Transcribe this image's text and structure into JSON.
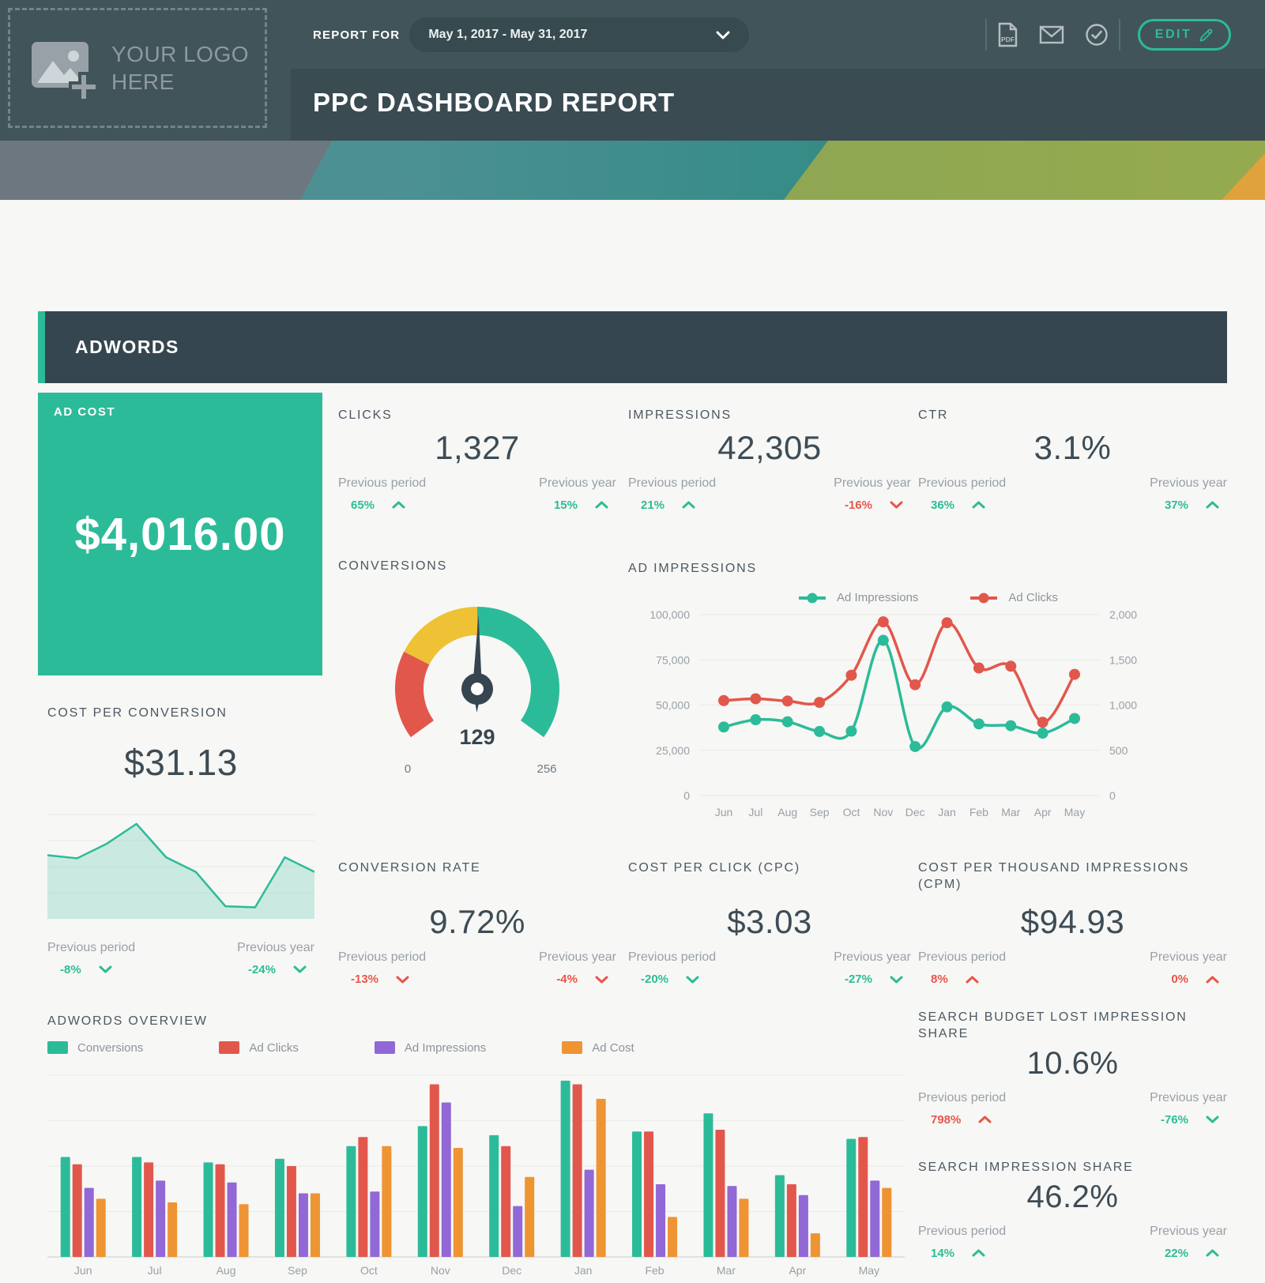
{
  "header": {
    "logo_line1": "YOUR LOGO",
    "logo_line2": "HERE",
    "report_for_label": "REPORT FOR",
    "date_range": "May 1, 2017 - May 31, 2017",
    "icons": [
      "pdf-icon",
      "mail-icon",
      "check-circle-icon"
    ],
    "edit_label": "EDIT",
    "title": "PPC DASHBOARD REPORT"
  },
  "section_title": "ADWORDS",
  "compare_labels": {
    "period": "Previous period",
    "year": "Previous year"
  },
  "colors": {
    "accent_teal": "#2cbb99",
    "positive_green": "#2bbd96",
    "negative_red": "#e8564a",
    "series_red": "#e2574c",
    "series_purple": "#9168d6",
    "series_orange": "#ee9433",
    "gauge_yellow": "#eec234",
    "dark_slate": "#364650"
  },
  "widgets": {
    "ad_cost": {
      "label": "AD COST",
      "value": "$4,016.00"
    },
    "clicks": {
      "label": "CLICKS",
      "value": "1,327",
      "prev_period": {
        "pct": "65%",
        "direction": "up",
        "color": "green"
      },
      "prev_year": {
        "pct": "15%",
        "direction": "up",
        "color": "green"
      }
    },
    "impressions": {
      "label": "IMPRESSIONS",
      "value": "42,305",
      "prev_period": {
        "pct": "21%",
        "direction": "up",
        "color": "green"
      },
      "prev_year": {
        "pct": "-16%",
        "direction": "down",
        "color": "red"
      }
    },
    "ctr": {
      "label": "CTR",
      "value": "3.1%",
      "prev_period": {
        "pct": "36%",
        "direction": "up",
        "color": "green"
      },
      "prev_year": {
        "pct": "37%",
        "direction": "up",
        "color": "green"
      }
    },
    "conversions": {
      "label": "CONVERSIONS",
      "value": "129",
      "min": "0",
      "max": "256"
    },
    "ad_impressions_chart": {
      "label": "AD IMPRESSIONS"
    },
    "cost_per_conversion": {
      "label": "COST PER CONVERSION",
      "value": "$31.13",
      "prev_period": {
        "pct": "-8%",
        "direction": "down",
        "color": "green"
      },
      "prev_year": {
        "pct": "-24%",
        "direction": "down",
        "color": "green"
      }
    },
    "conversion_rate": {
      "label": "CONVERSION RATE",
      "value": "9.72%",
      "prev_period": {
        "pct": "-13%",
        "direction": "down",
        "color": "red"
      },
      "prev_year": {
        "pct": "-4%",
        "direction": "down",
        "color": "red"
      }
    },
    "cpc": {
      "label": "COST PER CLICK (CPC)",
      "value": "$3.03",
      "prev_period": {
        "pct": "-20%",
        "direction": "down",
        "color": "green"
      },
      "prev_year": {
        "pct": "-27%",
        "direction": "down",
        "color": "green"
      }
    },
    "cpm": {
      "label": "COST PER THOUSAND IMPRESSIONS (CPM)",
      "value": "$94.93",
      "prev_period": {
        "pct": "8%",
        "direction": "up",
        "color": "red"
      },
      "prev_year": {
        "pct": "0%",
        "direction": "up",
        "color": "red"
      }
    },
    "adwords_overview": {
      "label": "ADWORDS OVERVIEW"
    },
    "search_budget_lost": {
      "label": "SEARCH BUDGET LOST IMPRESSION SHARE",
      "value": "10.6%",
      "prev_period": {
        "pct": "798%",
        "direction": "up",
        "color": "red"
      },
      "prev_year": {
        "pct": "-76%",
        "direction": "down",
        "color": "green"
      }
    },
    "search_impression_share": {
      "label": "SEARCH IMPRESSION SHARE",
      "value": "46.2%",
      "prev_period": {
        "pct": "14%",
        "direction": "up",
        "color": "green"
      },
      "prev_year": {
        "pct": "22%",
        "direction": "up",
        "color": "green"
      }
    }
  },
  "chart_data": [
    {
      "id": "conversions_gauge",
      "type": "gauge",
      "min": 0,
      "max": 256,
      "value": 129,
      "segments": [
        {
          "color": "#e2574c",
          "to": 0.25
        },
        {
          "color": "#eec234",
          "to": 0.5
        },
        {
          "color": "#2cbb99",
          "to": 1
        }
      ]
    },
    {
      "id": "ad_impressions",
      "type": "line",
      "title": "AD IMPRESSIONS",
      "categories": [
        "Jun",
        "Jul",
        "Aug",
        "Sep",
        "Oct",
        "Nov",
        "Dec",
        "Jan",
        "Feb",
        "Mar",
        "Apr",
        "May"
      ],
      "series": [
        {
          "name": "Ad Impressions",
          "color": "#2cbb99",
          "axis": "left",
          "values": [
            37900,
            41900,
            40800,
            35400,
            35600,
            85800,
            27100,
            49000,
            39600,
            38600,
            34500,
            42600
          ]
        },
        {
          "name": "Ad Clicks",
          "color": "#e2574c",
          "axis": "right",
          "values": [
            1050,
            1070,
            1045,
            1030,
            1330,
            1920,
            1225,
            1910,
            1410,
            1430,
            810,
            1340
          ]
        }
      ],
      "y_left": {
        "max": 100000,
        "ticks": [
          "0",
          "25,000",
          "50,000",
          "75,000",
          "100,000"
        ]
      },
      "y_right": {
        "max": 2000,
        "ticks": [
          "0",
          "500",
          "1,000",
          "1,500",
          "2,000"
        ]
      },
      "legend_position": "top",
      "grid": true
    },
    {
      "id": "cost_per_conversion_spark",
      "type": "area",
      "color": "#2cbb99",
      "values_relative": [
        0.61,
        0.58,
        0.72,
        0.91,
        0.59,
        0.45,
        0.12,
        0.11,
        0.59,
        0.45
      ]
    },
    {
      "id": "adwords_overview",
      "type": "bar",
      "title": "ADWORDS OVERVIEW",
      "categories": [
        "Jun",
        "Jul",
        "Aug",
        "Sep",
        "Oct",
        "Nov",
        "Dec",
        "Jan",
        "Feb",
        "Mar",
        "Apr",
        "May"
      ],
      "ylim": [
        0,
        100
      ],
      "series": [
        {
          "name": "Conversions",
          "color": "#2cbb99",
          "values": [
            55,
            55,
            52,
            54,
            61,
            72,
            67,
            97,
            69,
            79,
            45,
            65
          ]
        },
        {
          "name": "Ad Clicks",
          "color": "#e2574c",
          "values": [
            51,
            52,
            51,
            50,
            66,
            95,
            61,
            95,
            69,
            70,
            40,
            66
          ]
        },
        {
          "name": "Ad Impressions",
          "color": "#9168d6",
          "values": [
            38,
            42,
            41,
            35,
            36,
            85,
            28,
            48,
            40,
            39,
            34,
            42
          ]
        },
        {
          "name": "Ad Cost",
          "color": "#ee9433",
          "values": [
            32,
            30,
            29,
            35,
            61,
            60,
            44,
            87,
            22,
            32,
            13,
            38
          ]
        }
      ],
      "legend_position": "top",
      "grid": true
    }
  ]
}
